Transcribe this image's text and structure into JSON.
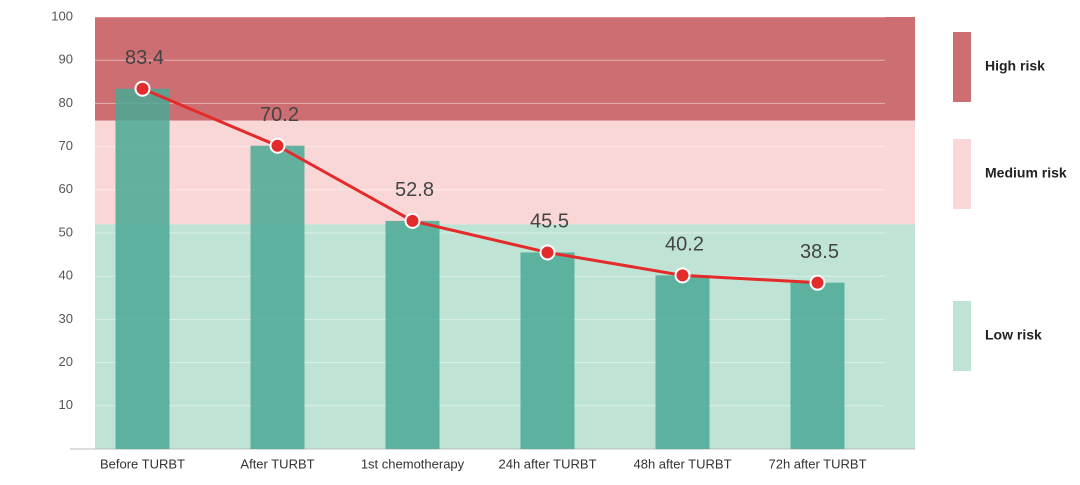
{
  "chart_data": {
    "type": "bar",
    "categories": [
      "Before TURBT",
      "After TURBT",
      "1st chemotherapy",
      "24h after TURBT",
      "48h after TURBT",
      "72h after TURBT"
    ],
    "values": [
      83.4,
      70.2,
      52.8,
      45.5,
      40.2,
      38.5
    ],
    "color": "#4aa995",
    "overlay_line": true,
    "line_color": "#e32b2b",
    "ylim": [
      0,
      100
    ],
    "yticks": [
      10,
      20,
      30,
      40,
      50,
      60,
      70,
      80,
      90,
      100
    ],
    "grid": true,
    "bands": [
      {
        "name": "High risk",
        "from": 76,
        "to": 100,
        "color": "#cd6f72"
      },
      {
        "name": "Medium risk",
        "from": 52,
        "to": 76,
        "color": "#f9d7d7"
      },
      {
        "name": "Low risk",
        "from": 0,
        "to": 52,
        "color": "#bfe3d5"
      }
    ],
    "legend": "right"
  }
}
